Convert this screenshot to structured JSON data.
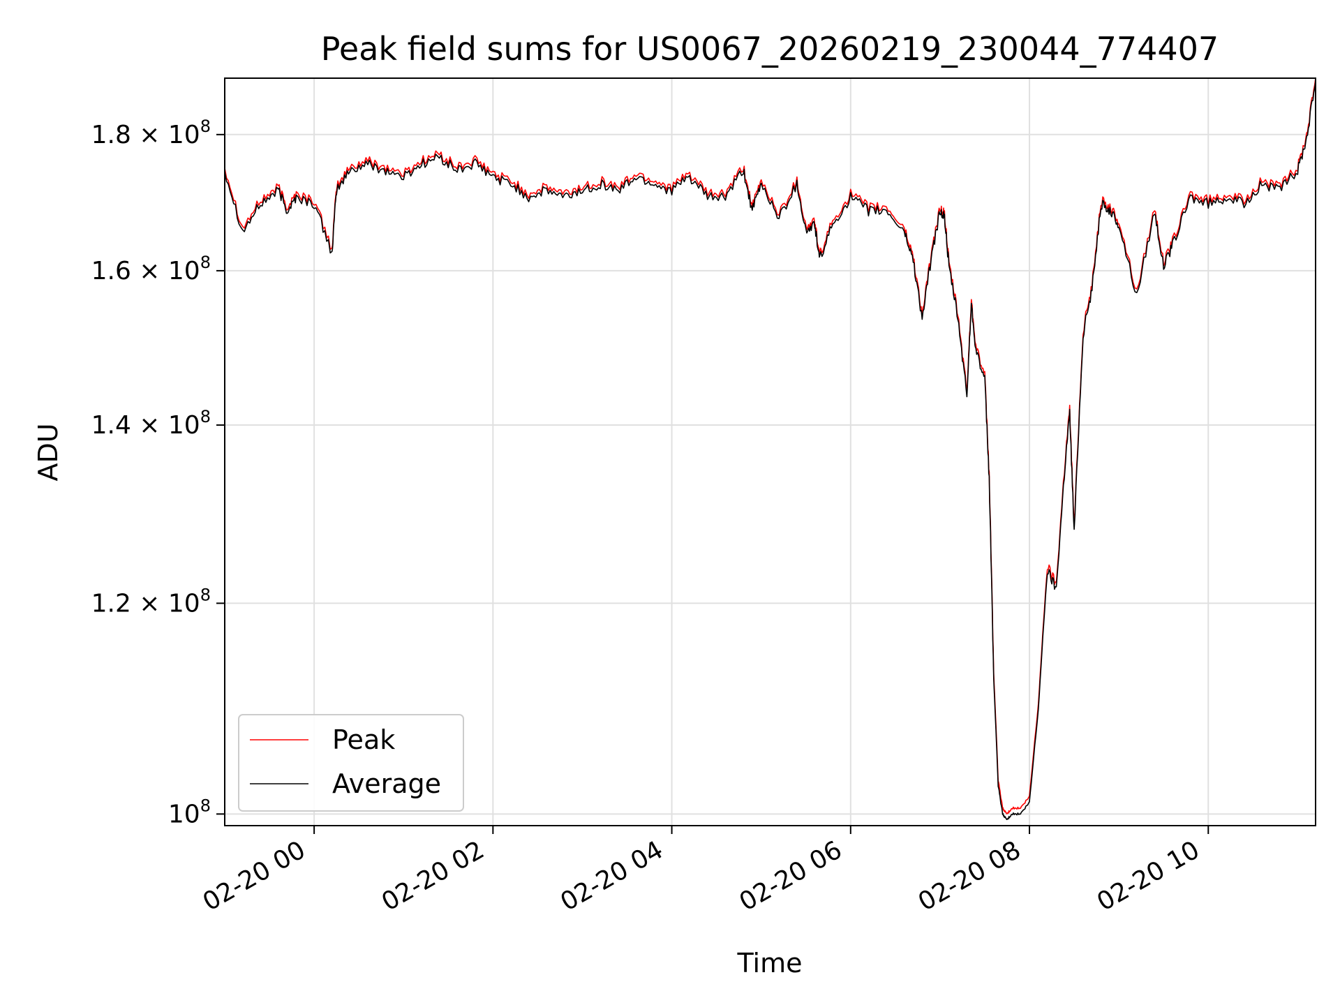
{
  "chart_data": {
    "type": "line",
    "title": "Peak field sums for US0067_20260219_230044_774407",
    "xlabel": "Time",
    "ylabel": "ADU",
    "yscale": "log",
    "grid": true,
    "legend_position": "lower-left",
    "xlim_hours": [
      -1.0,
      11.2
    ],
    "ylim": [
      99000000,
      189000000
    ],
    "x_ticks": [
      {
        "value": 0,
        "label": "02-20 00"
      },
      {
        "value": 2,
        "label": "02-20 02"
      },
      {
        "value": 4,
        "label": "02-20 04"
      },
      {
        "value": 6,
        "label": "02-20 06"
      },
      {
        "value": 8,
        "label": "02-20 08"
      },
      {
        "value": 10,
        "label": "02-20 10"
      }
    ],
    "y_ticks": [
      {
        "value": 100000000,
        "mantissa": "",
        "base": "10",
        "exp": "8"
      },
      {
        "value": 120000000,
        "mantissa": "1.2",
        "base": "10",
        "exp": "8"
      },
      {
        "value": 140000000,
        "mantissa": "1.4",
        "base": "10",
        "exp": "8"
      },
      {
        "value": 160000000,
        "mantissa": "1.6",
        "base": "10",
        "exp": "8"
      },
      {
        "value": 180000000,
        "mantissa": "1.8",
        "base": "10",
        "exp": "8"
      }
    ],
    "x_hours": [
      -1.0,
      -0.8,
      -0.6,
      -0.4,
      -0.3,
      -0.2,
      0.0,
      0.2,
      0.25,
      0.4,
      0.6,
      0.8,
      1.0,
      1.2,
      1.4,
      1.6,
      1.8,
      2.0,
      2.2,
      2.4,
      2.6,
      2.8,
      3.0,
      3.2,
      3.4,
      3.6,
      3.8,
      4.0,
      4.2,
      4.4,
      4.6,
      4.8,
      4.9,
      5.0,
      5.2,
      5.4,
      5.5,
      5.6,
      5.65,
      5.8,
      6.0,
      6.2,
      6.4,
      6.6,
      6.7,
      6.8,
      6.9,
      7.0,
      7.05,
      7.1,
      7.2,
      7.3,
      7.35,
      7.4,
      7.5,
      7.55,
      7.6,
      7.65,
      7.7,
      7.75,
      7.8,
      7.9,
      8.0,
      8.1,
      8.2,
      8.3,
      8.4,
      8.45,
      8.5,
      8.6,
      8.7,
      8.8,
      8.9,
      9.0,
      9.2,
      9.4,
      9.5,
      9.6,
      9.8,
      10.0,
      10.2,
      10.4,
      10.6,
      10.8,
      11.0,
      11.1,
      11.2
    ],
    "series": [
      {
        "name": "Peak",
        "color": "#ff0000",
        "values": [
          175000000,
          166000000,
          170000000,
          172000000,
          169000000,
          171000000,
          170000000,
          163000000,
          172000000,
          175000000,
          176000000,
          175000000,
          174000000,
          176000000,
          177000000,
          175000000,
          176000000,
          174000000,
          173000000,
          171000000,
          172000000,
          171000000,
          172000000,
          173000000,
          172000000,
          174000000,
          173000000,
          172000000,
          174000000,
          171000000,
          171000000,
          175000000,
          169000000,
          173000000,
          168000000,
          173000000,
          166000000,
          167000000,
          162000000,
          167000000,
          171000000,
          169000000,
          169000000,
          166000000,
          162000000,
          154000000,
          162000000,
          169000000,
          168000000,
          161000000,
          154000000,
          144000000,
          156000000,
          150000000,
          146000000,
          134000000,
          113000000,
          103000000,
          100500000,
          100000000,
          100500000,
          100500000,
          101500000,
          110000000,
          124000000,
          122000000,
          136000000,
          142000000,
          128000000,
          152000000,
          158000000,
          170000000,
          169000000,
          167000000,
          157000000,
          169000000,
          161000000,
          164000000,
          171000000,
          170000000,
          171000000,
          170000000,
          173000000,
          172000000,
          175000000,
          180000000,
          189000000
        ]
      },
      {
        "name": "Average",
        "color": "#000000",
        "values": [
          174500000,
          165500000,
          169500000,
          171500000,
          168500000,
          170500000,
          169500000,
          162500000,
          171500000,
          174500000,
          175500000,
          174500000,
          173500000,
          175500000,
          176500000,
          174500000,
          175500000,
          173500000,
          172500000,
          170500000,
          171500000,
          170500000,
          171500000,
          172500000,
          171500000,
          173500000,
          172500000,
          171500000,
          173500000,
          170500000,
          170500000,
          174500000,
          168500000,
          172500000,
          167500000,
          172500000,
          165500000,
          166500000,
          161500000,
          166500000,
          170500000,
          168500000,
          168500000,
          165500000,
          161500000,
          153500000,
          161500000,
          168500000,
          167500000,
          160500000,
          153500000,
          143500000,
          155500000,
          149500000,
          145500000,
          133500000,
          112500000,
          102500000,
          100000000,
          99500000,
          100000000,
          100000000,
          101000000,
          109500000,
          123500000,
          121500000,
          135500000,
          141500000,
          127500000,
          151500000,
          157500000,
          169500000,
          168500000,
          166500000,
          156500000,
          168500000,
          160500000,
          163500000,
          170500000,
          169500000,
          170500000,
          169500000,
          172500000,
          171500000,
          174500000,
          179500000,
          188500000
        ]
      }
    ]
  }
}
